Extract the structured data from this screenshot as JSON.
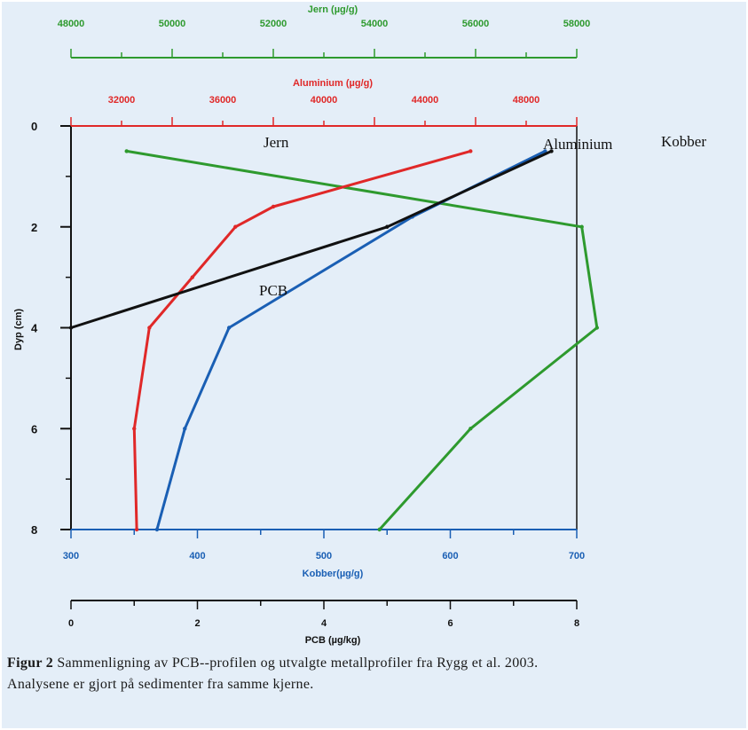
{
  "chart_data": {
    "type": "line",
    "y_axis": {
      "label": "Dyp (cm)",
      "ticks": [
        "0",
        "2",
        "4",
        "6",
        "8"
      ],
      "range": [
        0,
        8
      ],
      "reversed": true
    },
    "x_axes": [
      {
        "id": "jern",
        "label": "Jern (µg/g)",
        "color": "#2e9a2e",
        "range": [
          48000,
          58000
        ],
        "ticks": [
          "48000",
          "50000",
          "52000",
          "54000",
          "56000",
          "58000"
        ]
      },
      {
        "id": "aluminium",
        "label": "Aluminium (µg/g)",
        "color": "#e02828",
        "range": [
          30000,
          50000
        ],
        "ticks": [
          "32000",
          "36000",
          "40000",
          "44000",
          "48000"
        ],
        "tick_values": [
          32000,
          36000,
          40000,
          44000,
          48000
        ]
      },
      {
        "id": "kobber",
        "label": "Kobber(µg/g)",
        "color": "#1a5fb4",
        "range": [
          300,
          700
        ],
        "ticks": [
          "300",
          "400",
          "500",
          "600",
          "700"
        ]
      },
      {
        "id": "pcb",
        "label": "PCB (µg/kg)",
        "color": "#111111",
        "range": [
          0,
          8
        ],
        "ticks": [
          "0",
          "2",
          "4",
          "6",
          "8"
        ]
      }
    ],
    "series": [
      {
        "name": "Jern",
        "axis": "jern",
        "color": "#2e9a2e",
        "x": [
          49100,
          58100,
          58400,
          55900,
          54100
        ],
        "y": [
          0.5,
          2,
          4,
          6,
          8
        ]
      },
      {
        "name": "Aluminium",
        "axis": "aluminium",
        "color": "#e02828",
        "x": [
          45800,
          38000,
          36500,
          34800,
          33100,
          32500,
          32600
        ],
        "y": [
          0.5,
          1.6,
          2.0,
          3.0,
          4.0,
          6.0,
          8.0
        ]
      },
      {
        "name": "Kobber",
        "axis": "kobber",
        "color": "#1a5fb4",
        "x": [
          675,
          570,
          425,
          390,
          368
        ],
        "y": [
          0.5,
          1.8,
          4,
          6,
          8
        ]
      },
      {
        "name": "PCB",
        "axis": "pcb",
        "color": "#111111",
        "x": [
          7.6,
          5.0,
          0
        ],
        "y": [
          0.5,
          2,
          4
        ]
      }
    ],
    "annotations": [
      "Jern",
      "Aluminium",
      "Kobber",
      "PCB"
    ]
  },
  "caption": {
    "bold": "Figur 2",
    "text": " Sammenligning av PCB--profilen og utvalgte metallprofiler fra Rygg et al. 2003. Analysene er gjort på sedimenter fra samme kjerne."
  }
}
